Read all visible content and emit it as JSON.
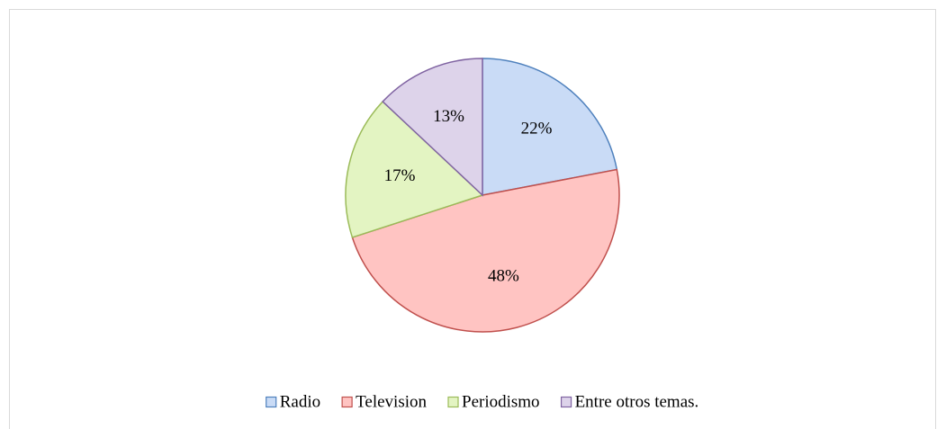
{
  "chart_data": {
    "type": "pie",
    "categories": [
      "Radio",
      "Television",
      "Periodismo",
      "Entre otros temas."
    ],
    "values": [
      22,
      48,
      17,
      13
    ],
    "value_labels": [
      "22%",
      "48%",
      "17%",
      "13%"
    ],
    "colors": [
      "#c9dbf6",
      "#ffc4c2",
      "#e3f4c2",
      "#ddd3ea"
    ],
    "edge_colors": [
      "#4f81bd",
      "#c0504d",
      "#9bbb59",
      "#8064a2"
    ],
    "legend": "bottom"
  }
}
